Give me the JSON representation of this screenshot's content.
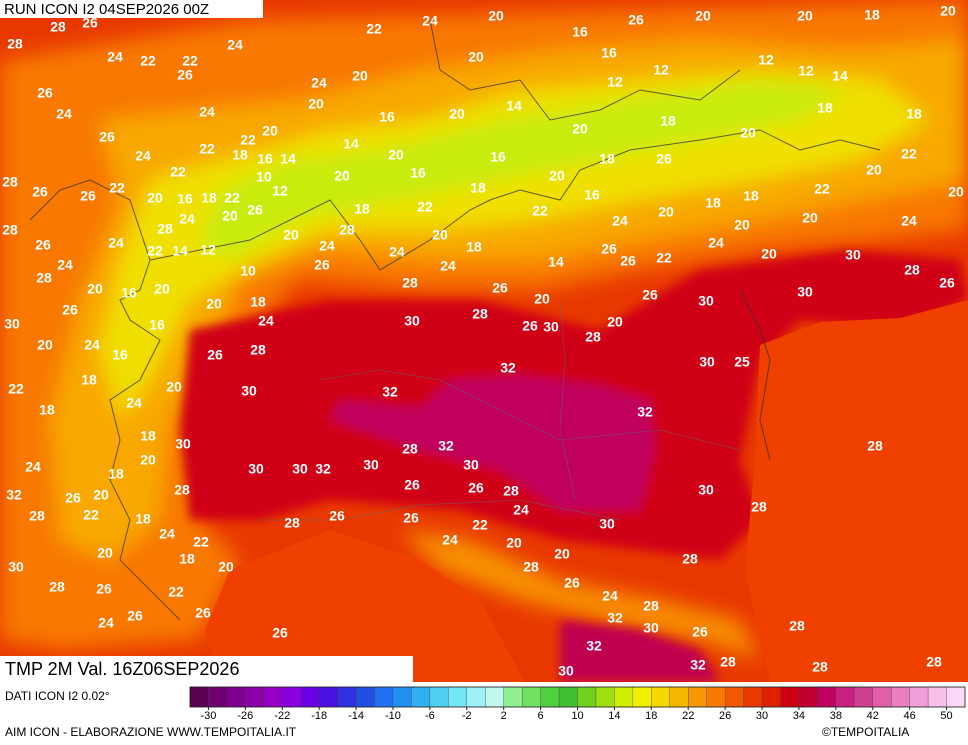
{
  "header": {
    "run": "RUN ICON I2 04SEP2026 00Z"
  },
  "map": {
    "labels": [
      28,
      26,
      28,
      24,
      22,
      26,
      22,
      24,
      26,
      24,
      26,
      24,
      24,
      22,
      20,
      22,
      22,
      18,
      16,
      14,
      10,
      28,
      26,
      26,
      22,
      20,
      16,
      18,
      22,
      12,
      26,
      20,
      24,
      28,
      28,
      26,
      24,
      22,
      14,
      12,
      10,
      24,
      28,
      20,
      16,
      20,
      26,
      30,
      16,
      20,
      18,
      24,
      28,
      26,
      20,
      24,
      16,
      20,
      18,
      22,
      18,
      24,
      30,
      32,
      32,
      32,
      30,
      28,
      26,
      30,
      28,
      20,
      20,
      30,
      25,
      26,
      28,
      30,
      26,
      26,
      22,
      24,
      20,
      30,
      30,
      28,
      26,
      30,
      30,
      30,
      32,
      30,
      28,
      32,
      30,
      26,
      26,
      28,
      24,
      22,
      26,
      26,
      28,
      28,
      18,
      20,
      18,
      20,
      26,
      24,
      28,
      22,
      18,
      24,
      22,
      18,
      20,
      22,
      20,
      26,
      30,
      28,
      26,
      24,
      26,
      26,
      30,
      28,
      28,
      30,
      28,
      20,
      20,
      24,
      28,
      26,
      24,
      28,
      32,
      30,
      32,
      30,
      26,
      32,
      28,
      28,
      28,
      28,
      32,
      24,
      20,
      16,
      26,
      20,
      20,
      18,
      20,
      22,
      20,
      16,
      12,
      12,
      12,
      12,
      14,
      20,
      24,
      20,
      14,
      16,
      20,
      14,
      20,
      18,
      20,
      18,
      18,
      20,
      16,
      20,
      16,
      18,
      28,
      20,
      24,
      22,
      18,
      22,
      20,
      18,
      26,
      16,
      24,
      20,
      18,
      18,
      22,
      20,
      22,
      20,
      24,
      20,
      20,
      20,
      18,
      24,
      24,
      26,
      14,
      26
    ]
  },
  "footer": {
    "variable": "TMP 2M Val. 16Z06SEP2026",
    "source": "DATI ICON I2 0.02°",
    "credit": "AIM ICON - ELABORAZIONE WWW.TEMPOITALIA.IT",
    "copyright": "©TEMPOITALIA"
  },
  "legend": {
    "lim": [
      -32,
      52
    ],
    "ticks": [
      -30,
      -26,
      -22,
      -18,
      -14,
      -10,
      -6,
      -2,
      2,
      6,
      10,
      14,
      18,
      22,
      26,
      30,
      34,
      38,
      42,
      46,
      50
    ],
    "colors": [
      "#5a0050",
      "#6e0070",
      "#7e0090",
      "#8c00a8",
      "#9400c8",
      "#8a00e0",
      "#6a00e6",
      "#4a10e0",
      "#3030e0",
      "#2050e0",
      "#2070f0",
      "#2090f0",
      "#30b0f0",
      "#50d0f0",
      "#70e8f8",
      "#a0f0f8",
      "#c0f8f0",
      "#90f090",
      "#70e060",
      "#50d040",
      "#40c030",
      "#70d020",
      "#a0e010",
      "#d0f000",
      "#f0f000",
      "#f8d800",
      "#f8b800",
      "#f89800",
      "#f87800",
      "#f05800",
      "#e83800",
      "#e02000",
      "#d00010",
      "#c00030",
      "#c00060",
      "#c82080",
      "#d04090",
      "#e060a8",
      "#e880c0",
      "#f0a0d8",
      "#f8c0e8",
      "#fcd8f4"
    ]
  }
}
